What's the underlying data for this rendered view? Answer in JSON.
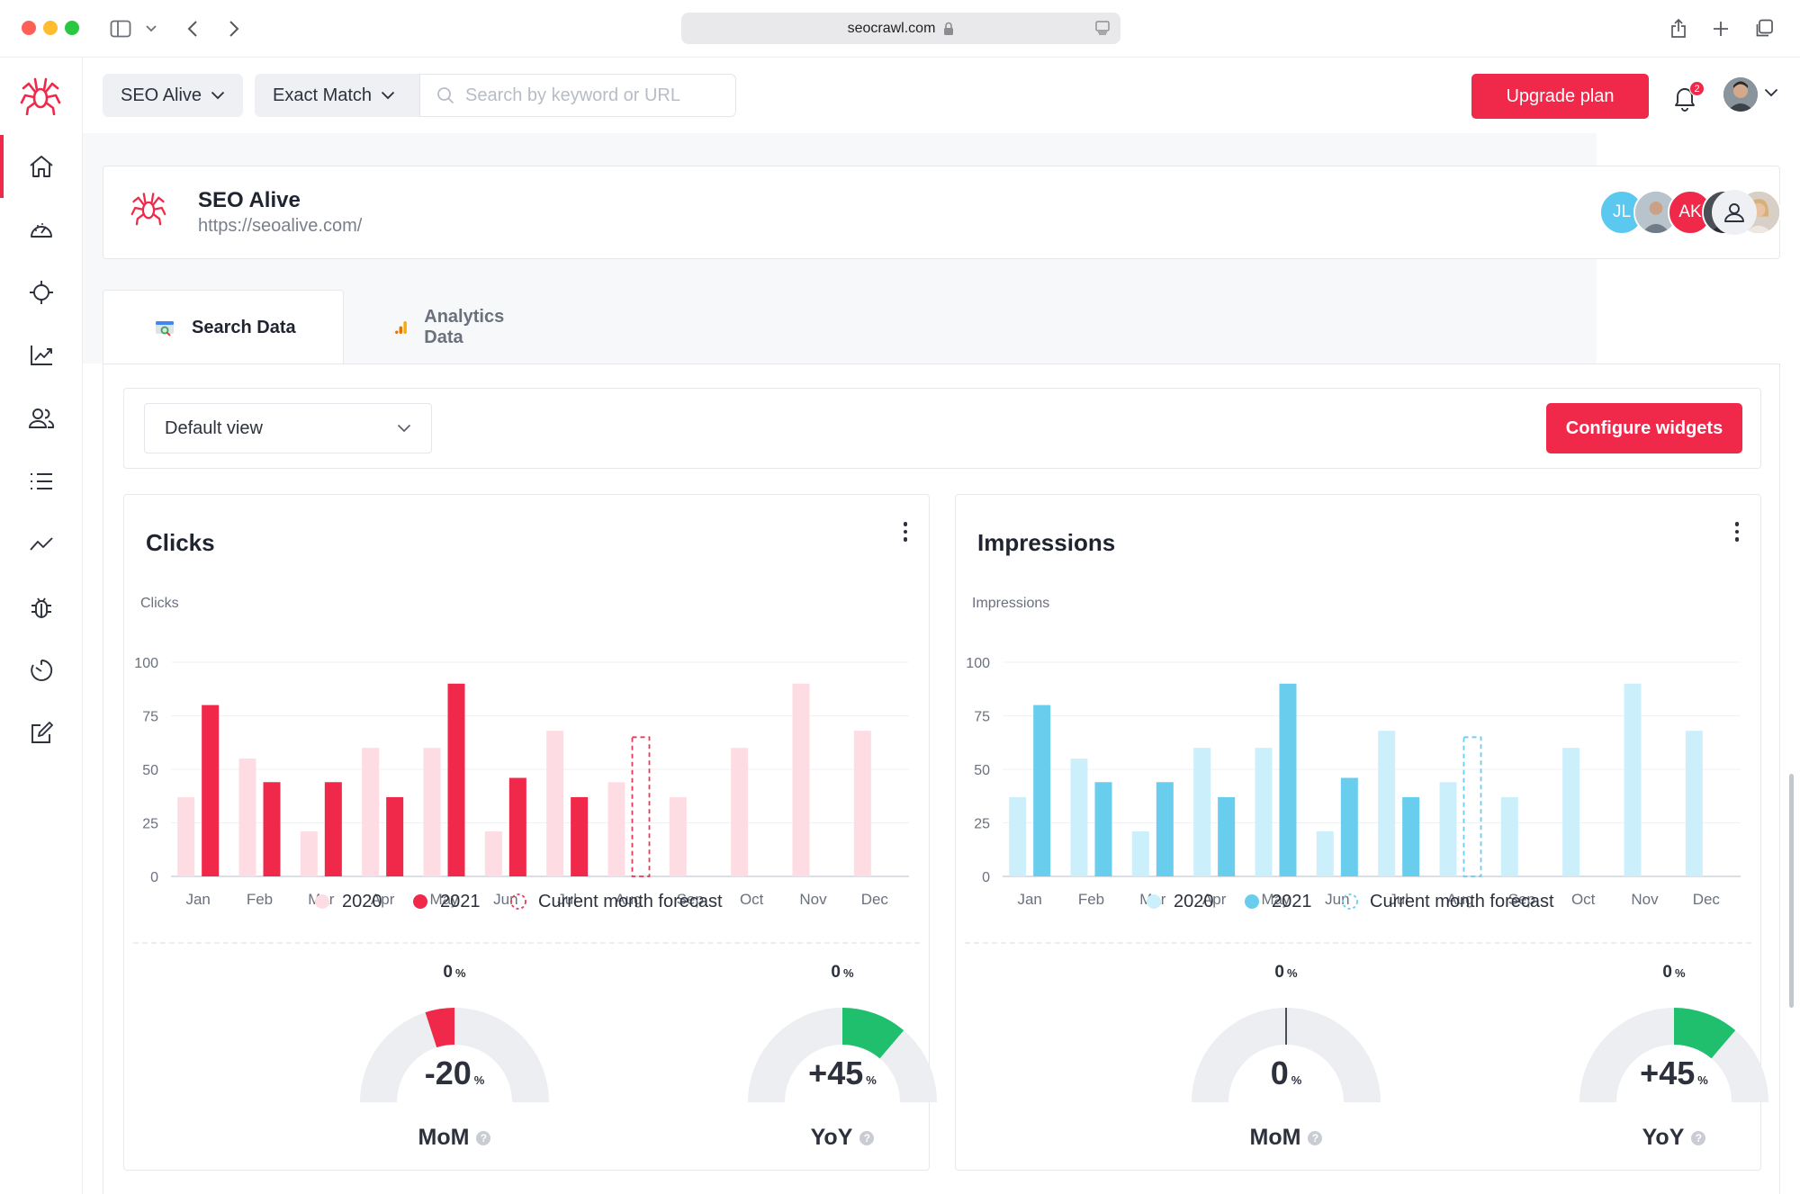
{
  "browser": {
    "url": "seocrawl.com"
  },
  "topbar": {
    "project_select": "SEO Alive",
    "match_select": "Exact Match",
    "search_placeholder": "Search by keyword or URL",
    "upgrade_label": "Upgrade plan",
    "notification_count": "2"
  },
  "sidebar": {
    "items": [
      {
        "icon": "home-icon",
        "active": true
      },
      {
        "icon": "gauge-icon",
        "active": false
      },
      {
        "icon": "target-icon",
        "active": false
      },
      {
        "icon": "line-chart-icon",
        "active": false
      },
      {
        "icon": "users-icon",
        "active": false
      },
      {
        "icon": "list-icon",
        "active": false
      },
      {
        "icon": "trend-icon",
        "active": false
      },
      {
        "icon": "bug-icon",
        "active": false
      },
      {
        "icon": "timer-icon",
        "active": false
      },
      {
        "icon": "edit-icon",
        "active": false
      }
    ]
  },
  "project": {
    "name": "SEO Alive",
    "url": "https://seoalive.com/",
    "members": [
      {
        "initials": "JL",
        "color": "#5ac8ef"
      },
      {
        "initials": "",
        "color": "#a9b4bd"
      },
      {
        "initials": "AK",
        "color": "#f0284a"
      },
      {
        "initials": "",
        "color": "#4a4e55"
      },
      {
        "initials": "",
        "color": "#c9a98f"
      }
    ]
  },
  "tabs": {
    "search_data": "Search Data",
    "analytics_data": "Analytics Data"
  },
  "toolbar": {
    "view_select": "Default view",
    "configure_label": "Configure widgets"
  },
  "widgets": [
    {
      "title": "Clicks",
      "gauges": [
        {
          "top": "0",
          "value": "-20",
          "label": "MoM",
          "percent": -20
        },
        {
          "top": "0",
          "value": "+45",
          "label": "YoY",
          "percent": 45
        }
      ],
      "colors": {
        "y2020": "#fddde3",
        "y2021": "#f0284a",
        "forecast": "#e8395a"
      }
    },
    {
      "title": "Impressions",
      "gauges": [
        {
          "top": "0",
          "value": "0",
          "label": "MoM",
          "percent": 0
        },
        {
          "top": "0",
          "value": "+45",
          "label": "YoY",
          "percent": 45
        }
      ],
      "colors": {
        "y2020": "#ccf0fb",
        "y2021": "#69cdee",
        "forecast": "#69cdee"
      }
    }
  ],
  "chart_data": [
    {
      "type": "bar",
      "ylabel": "Clicks",
      "ylim": [
        0,
        100
      ],
      "yticks": [
        0,
        25,
        50,
        75,
        100
      ],
      "categories": [
        "Jan",
        "Feb",
        "Mar",
        "Apr",
        "May",
        "Jun",
        "Jul",
        "Aug",
        "Sep",
        "Oct",
        "Nov",
        "Dec"
      ],
      "series": [
        {
          "name": "2020",
          "values": [
            37,
            55,
            21,
            60,
            60,
            21,
            68,
            44,
            37,
            60,
            90,
            68
          ]
        },
        {
          "name": "2021",
          "values": [
            80,
            44,
            44,
            37,
            90,
            46,
            37,
            null,
            null,
            null,
            null,
            null
          ]
        },
        {
          "name": "Current month forecast",
          "values": [
            null,
            null,
            null,
            null,
            null,
            null,
            null,
            65,
            null,
            null,
            null,
            null
          ]
        }
      ],
      "legend": "bottom"
    },
    {
      "type": "bar",
      "ylabel": "Impressions",
      "ylim": [
        0,
        100
      ],
      "yticks": [
        0,
        25,
        50,
        75,
        100
      ],
      "categories": [
        "Jan",
        "Feb",
        "Mar",
        "Apr",
        "May",
        "Jun",
        "Jul",
        "Aug",
        "Sep",
        "Oct",
        "Nov",
        "Dec"
      ],
      "series": [
        {
          "name": "2020",
          "values": [
            37,
            55,
            21,
            60,
            60,
            21,
            68,
            44,
            37,
            60,
            90,
            68
          ]
        },
        {
          "name": "2021",
          "values": [
            80,
            44,
            44,
            37,
            90,
            46,
            37,
            null,
            null,
            null,
            null,
            null
          ]
        },
        {
          "name": "Current month forecast",
          "values": [
            null,
            null,
            null,
            null,
            null,
            null,
            null,
            65,
            null,
            null,
            null,
            null
          ]
        }
      ],
      "legend": "bottom"
    }
  ]
}
